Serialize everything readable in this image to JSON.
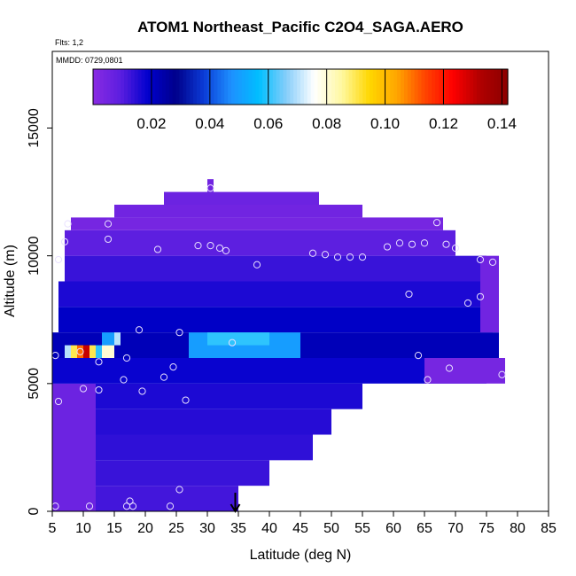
{
  "chart_data": {
    "type": "heatmap",
    "title": "ATOM1 Northeast_Pacific C2O4_SAGA.AERO",
    "flights_note": "Flts: 1,2",
    "dates_note": "MMDD: 0729,0801",
    "xlabel": "Latitude (deg N)",
    "ylabel": "Altitude (m)",
    "xlim": [
      5,
      85
    ],
    "ylim": [
      0,
      18000
    ],
    "x_ticks": [
      "5",
      "10",
      "15",
      "20",
      "25",
      "30",
      "35",
      "40",
      "45",
      "50",
      "55",
      "60",
      "65",
      "70",
      "75",
      "80",
      "85"
    ],
    "y_ticks": [
      "0",
      "5000",
      "10000",
      "15000"
    ],
    "colorbar": {
      "range": [
        0.0,
        0.142
      ],
      "tick_labels": [
        "0.02",
        "0.04",
        "0.06",
        "0.08",
        "0.10",
        "0.12",
        "0.14"
      ],
      "colors": [
        "#8a2be2",
        "#5b1ee0",
        "#0000cd",
        "#00008b",
        "#0b3bd6",
        "#1e90ff",
        "#00bfff",
        "#87cefa",
        "#ffffff",
        "#fff8a0",
        "#ffd700",
        "#ffa500",
        "#ff4500",
        "#ff0000",
        "#b00000",
        "#8b0000"
      ]
    },
    "arrow_marker_latitude": 34.5,
    "cells": [
      {
        "x0": 5,
        "x1": 35,
        "y0": 0,
        "y1": 1000,
        "value": 0.012
      },
      {
        "x0": 5,
        "x1": 40,
        "y0": 1000,
        "y1": 2000,
        "value": 0.013
      },
      {
        "x0": 5,
        "x1": 47,
        "y0": 2000,
        "y1": 3000,
        "value": 0.014
      },
      {
        "x0": 5,
        "x1": 50,
        "y0": 3000,
        "y1": 4000,
        "value": 0.015
      },
      {
        "x0": 5,
        "x1": 55,
        "y0": 4000,
        "y1": 5000,
        "value": 0.016
      },
      {
        "x0": 5,
        "x1": 12,
        "y0": 0,
        "y1": 5000,
        "value": 0.006
      },
      {
        "x0": 5,
        "x1": 75,
        "y0": 5000,
        "y1": 6000,
        "value": 0.018
      },
      {
        "x0": 5,
        "x1": 77,
        "y0": 6000,
        "y1": 7000,
        "value": 0.022
      },
      {
        "x0": 6,
        "x1": 76,
        "y0": 7000,
        "y1": 8000,
        "value": 0.02
      },
      {
        "x0": 6,
        "x1": 76,
        "y0": 8000,
        "y1": 9000,
        "value": 0.016
      },
      {
        "x0": 7,
        "x1": 75,
        "y0": 9000,
        "y1": 10000,
        "value": 0.013
      },
      {
        "x0": 7,
        "x1": 70,
        "y0": 10000,
        "y1": 11000,
        "value": 0.009
      },
      {
        "x0": 8,
        "x1": 68,
        "y0": 11000,
        "y1": 11500,
        "value": 0.004
      },
      {
        "x0": 15,
        "x1": 55,
        "y0": 11500,
        "y1": 12000,
        "value": 0.005
      },
      {
        "x0": 23,
        "x1": 48,
        "y0": 12000,
        "y1": 12500,
        "value": 0.006
      },
      {
        "x0": 30,
        "x1": 31,
        "y0": 12500,
        "y1": 13000,
        "value": 0.005
      },
      {
        "x0": 65,
        "x1": 78,
        "y0": 5000,
        "y1": 6000,
        "value": 0.004
      },
      {
        "x0": 74,
        "x1": 77,
        "y0": 7000,
        "y1": 10000,
        "value": 0.005
      },
      {
        "x0": 27,
        "x1": 45,
        "y0": 6000,
        "y1": 7000,
        "value": 0.05
      },
      {
        "x0": 30,
        "x1": 40,
        "y0": 6500,
        "y1": 7000,
        "value": 0.06
      },
      {
        "x0": 7,
        "x1": 8,
        "y0": 6000,
        "y1": 6500,
        "value": 0.07
      },
      {
        "x0": 8,
        "x1": 9,
        "y0": 6000,
        "y1": 6500,
        "value": 0.09
      },
      {
        "x0": 9,
        "x1": 10,
        "y0": 6000,
        "y1": 6500,
        "value": 0.11
      },
      {
        "x0": 10,
        "x1": 11,
        "y0": 6000,
        "y1": 6500,
        "value": 0.13
      },
      {
        "x0": 11,
        "x1": 12,
        "y0": 6000,
        "y1": 6500,
        "value": 0.09
      },
      {
        "x0": 12,
        "x1": 13,
        "y0": 6000,
        "y1": 6500,
        "value": 0.06
      },
      {
        "x0": 13,
        "x1": 15,
        "y0": 6000,
        "y1": 6500,
        "value": 0.08
      },
      {
        "x0": 13,
        "x1": 15,
        "y0": 6500,
        "y1": 7000,
        "value": 0.05
      },
      {
        "x0": 15,
        "x1": 16,
        "y0": 6500,
        "y1": 7000,
        "value": 0.07
      }
    ],
    "sample_points": [
      {
        "lat": 5.5,
        "alt": 200
      },
      {
        "lat": 11,
        "alt": 200
      },
      {
        "lat": 17,
        "alt": 200
      },
      {
        "lat": 18,
        "alt": 200
      },
      {
        "lat": 24,
        "alt": 200
      },
      {
        "lat": 17.5,
        "alt": 400
      },
      {
        "lat": 25.5,
        "alt": 850
      },
      {
        "lat": 6,
        "alt": 4300
      },
      {
        "lat": 10,
        "alt": 4800
      },
      {
        "lat": 12.5,
        "alt": 4750
      },
      {
        "lat": 19.5,
        "alt": 4700
      },
      {
        "lat": 26.5,
        "alt": 4350
      },
      {
        "lat": 23,
        "alt": 5250
      },
      {
        "lat": 16.5,
        "alt": 5150
      },
      {
        "lat": 24.5,
        "alt": 5650
      },
      {
        "lat": 12.5,
        "alt": 5850
      },
      {
        "lat": 17,
        "alt": 6000
      },
      {
        "lat": 5.5,
        "alt": 6100
      },
      {
        "lat": 9.5,
        "alt": 6250
      },
      {
        "lat": 19,
        "alt": 7100
      },
      {
        "lat": 25.5,
        "alt": 7000
      },
      {
        "lat": 34,
        "alt": 6600
      },
      {
        "lat": 64,
        "alt": 6100
      },
      {
        "lat": 69,
        "alt": 5600
      },
      {
        "lat": 65.5,
        "alt": 5150
      },
      {
        "lat": 77.5,
        "alt": 5350
      },
      {
        "lat": 62.5,
        "alt": 8500
      },
      {
        "lat": 72,
        "alt": 8150
      },
      {
        "lat": 74,
        "alt": 8400
      },
      {
        "lat": 6,
        "alt": 9850
      },
      {
        "lat": 7,
        "alt": 10550
      },
      {
        "lat": 7.5,
        "alt": 11250
      },
      {
        "lat": 14,
        "alt": 11250
      },
      {
        "lat": 14,
        "alt": 10650
      },
      {
        "lat": 22,
        "alt": 10250
      },
      {
        "lat": 28.5,
        "alt": 10400
      },
      {
        "lat": 30.5,
        "alt": 10400
      },
      {
        "lat": 32,
        "alt": 10300
      },
      {
        "lat": 33,
        "alt": 10200
      },
      {
        "lat": 38,
        "alt": 9650
      },
      {
        "lat": 47,
        "alt": 10100
      },
      {
        "lat": 49,
        "alt": 10050
      },
      {
        "lat": 51,
        "alt": 9950
      },
      {
        "lat": 53,
        "alt": 9950
      },
      {
        "lat": 55,
        "alt": 9950
      },
      {
        "lat": 59,
        "alt": 10350
      },
      {
        "lat": 61,
        "alt": 10500
      },
      {
        "lat": 63,
        "alt": 10450
      },
      {
        "lat": 65,
        "alt": 10500
      },
      {
        "lat": 67,
        "alt": 11300
      },
      {
        "lat": 68.5,
        "alt": 10450
      },
      {
        "lat": 70,
        "alt": 10300
      },
      {
        "lat": 74,
        "alt": 9850
      },
      {
        "lat": 76,
        "alt": 9750
      },
      {
        "lat": 30.5,
        "alt": 12650
      }
    ]
  }
}
